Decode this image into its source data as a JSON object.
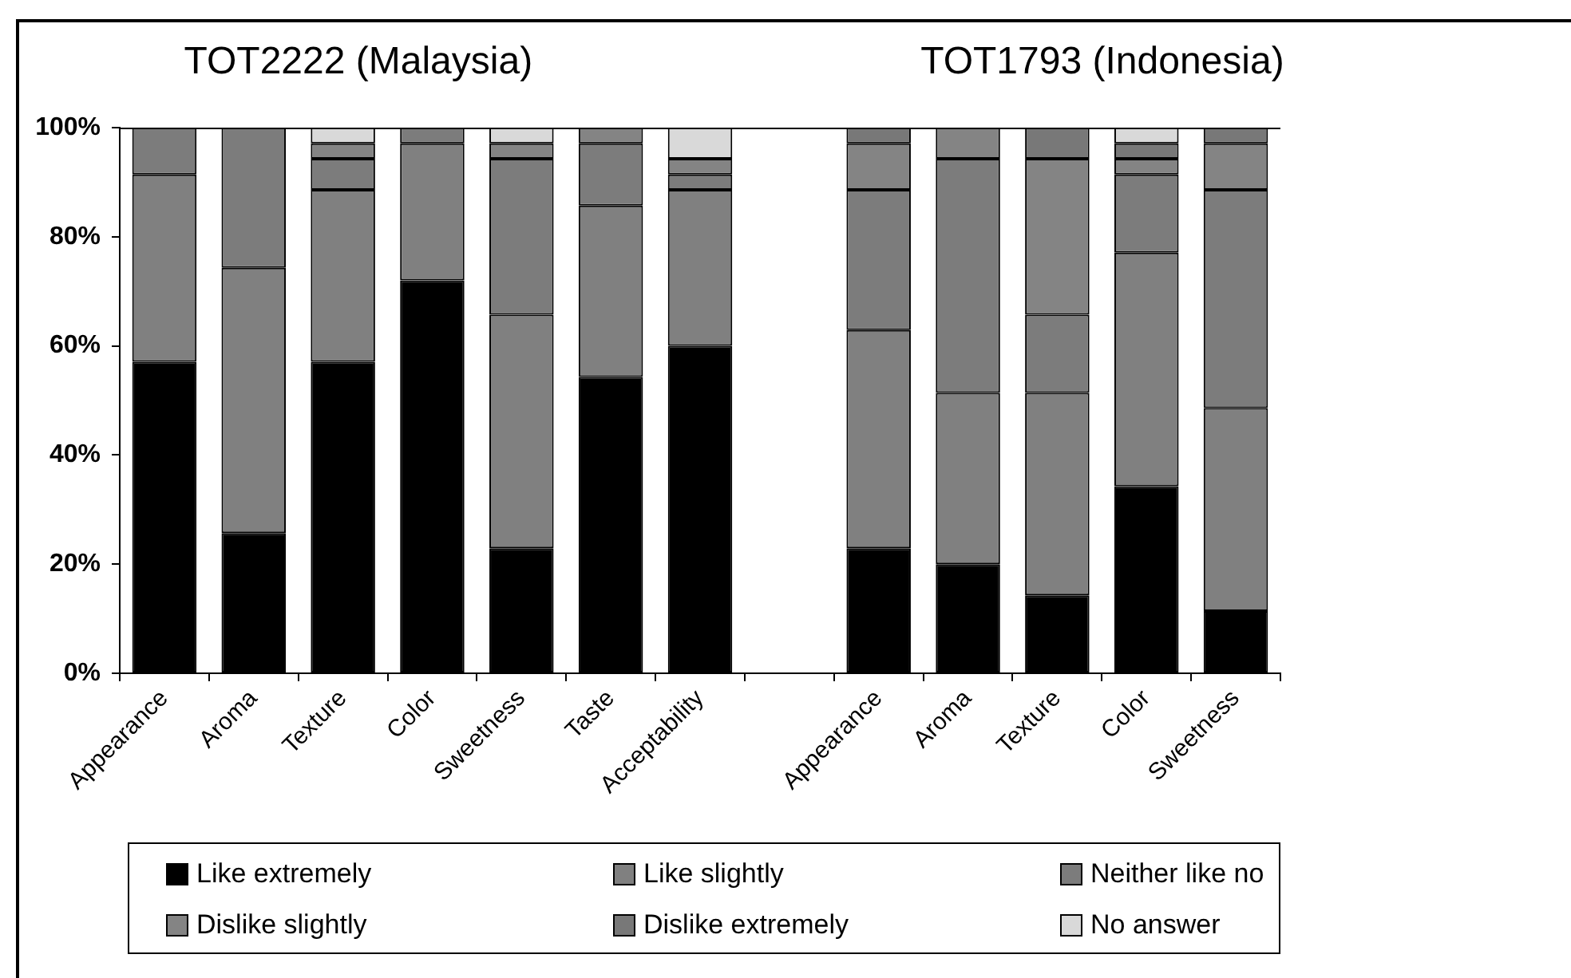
{
  "chart_data": {
    "type": "bar",
    "stacked": true,
    "legend": "bottom",
    "annotations": [
      "TOT2222 (Malaysia)",
      "TOT1793 (Indonesia)"
    ],
    "categories": [
      "Appearance",
      "Aroma",
      "Texture",
      "Color",
      "Sweetness",
      "Taste",
      "Acceptability",
      null,
      "Appearance",
      "Aroma",
      "Texture",
      "Color",
      "Sweetness"
    ],
    "ylim": [
      0,
      100
    ],
    "yticks": [
      {
        "value": 0,
        "label": "0%"
      },
      {
        "value": 20,
        "label": "20%"
      },
      {
        "value": 40,
        "label": "40%"
      },
      {
        "value": 60,
        "label": "60%"
      },
      {
        "value": 80,
        "label": "80%"
      },
      {
        "value": 100,
        "label": "100%"
      }
    ],
    "series": [
      {
        "name": "Like extremely",
        "color": "#000000",
        "values": [
          57.1,
          25.7,
          57.1,
          72,
          22.9,
          54.3,
          60.0,
          null,
          22.9,
          20.0,
          14.3,
          34.3,
          11.4
        ]
      },
      {
        "name": "Like slightly",
        "color": "#808080",
        "values": [
          34.3,
          48.6,
          31.5,
          25.1,
          42.8,
          31.4,
          28.6,
          null,
          40.0,
          31.4,
          37.1,
          42.8,
          37.2
        ]
      },
      {
        "name": "Neither like no",
        "color": "#7c7c7c",
        "values": [
          8.6,
          25.7,
          5.7,
          2.9,
          28.6,
          11.4,
          2.8,
          null,
          25.7,
          42.9,
          14.3,
          14.3,
          40.0
        ]
      },
      {
        "name": "Dislike slightly",
        "color": "#848484",
        "values": [
          0,
          0,
          2.8,
          0,
          2.8,
          2.9,
          2.9,
          null,
          8.5,
          5.7,
          28.6,
          2.9,
          8.5
        ]
      },
      {
        "name": "Dislike extremely",
        "color": "#787878",
        "values": [
          0,
          0,
          0,
          0,
          0,
          0,
          0,
          null,
          2.9,
          0,
          5.7,
          2.8,
          2.9
        ]
      },
      {
        "name": "No answer",
        "color": "#d9d9d9",
        "values": [
          0,
          0,
          2.9,
          0,
          2.9,
          0,
          5.7,
          null,
          0,
          0,
          0,
          2.9,
          0
        ]
      }
    ]
  }
}
